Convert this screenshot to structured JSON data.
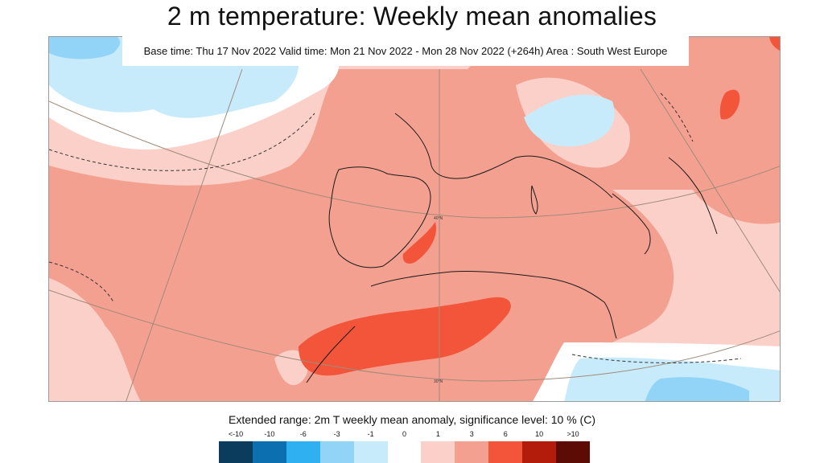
{
  "title": "2 m temperature: Weekly mean anomalies",
  "info": "Base time: Thu 17 Nov 2022 Valid time: Mon 21 Nov 2022 - Mon 28 Nov 2022 (+264h) Area : South West Europe",
  "colorbar": {
    "title": "Extended range: 2m T weekly mean anomaly, significance level: 10 % (C)",
    "labels": [
      "<-10",
      "-10",
      "-6",
      "-3",
      "-1",
      "0",
      "1",
      "3",
      "6",
      "10",
      ">10"
    ],
    "colors": [
      "#0b3c5d",
      "#0b6fb0",
      "#2fb0f0",
      "#92d4f7",
      "#c8ebfb",
      "#ffffff",
      "#fbd0c8",
      "#f4a090",
      "#f2553a",
      "#b31b0b",
      "#5c0c04"
    ]
  },
  "map": {
    "region": "South West Europe",
    "graticule_labels": [
      "40°N",
      "30°N"
    ]
  }
}
